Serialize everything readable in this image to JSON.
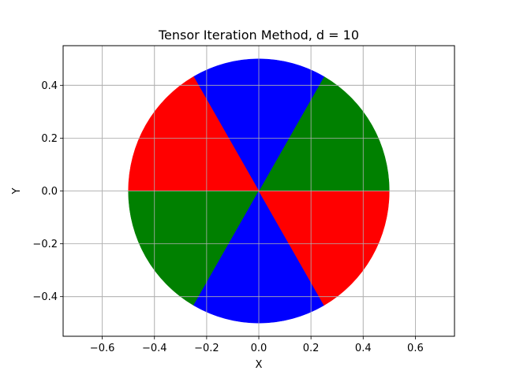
{
  "chart_data": {
    "type": "pie",
    "title": "Tensor Iteration Method, d = 10",
    "xlabel": "X",
    "ylabel": "Y",
    "xlim": [
      -0.75,
      0.75
    ],
    "ylim": [
      -0.55,
      0.55
    ],
    "grid": true,
    "x_ticks": [
      -0.6,
      -0.4,
      -0.2,
      0.0,
      0.2,
      0.4,
      0.6
    ],
    "x_tick_labels": [
      "−0.6",
      "−0.4",
      "−0.2",
      "0.0",
      "0.2",
      "0.4",
      "0.6"
    ],
    "y_ticks": [
      -0.4,
      -0.2,
      0.0,
      0.2,
      0.4
    ],
    "y_tick_labels": [
      "−0.4",
      "−0.2",
      "0.0",
      "0.2",
      "0.4"
    ],
    "disk": {
      "center": [
        0,
        0
      ],
      "radius": 0.5
    },
    "slices": [
      {
        "start_deg": 0,
        "end_deg": 60,
        "color": "#008000"
      },
      {
        "start_deg": 60,
        "end_deg": 120,
        "color": "#0000ff"
      },
      {
        "start_deg": 120,
        "end_deg": 180,
        "color": "#ff0000"
      },
      {
        "start_deg": 180,
        "end_deg": 240,
        "color": "#008000"
      },
      {
        "start_deg": 240,
        "end_deg": 300,
        "color": "#0000ff"
      },
      {
        "start_deg": 300,
        "end_deg": 360,
        "color": "#ff0000"
      }
    ]
  }
}
